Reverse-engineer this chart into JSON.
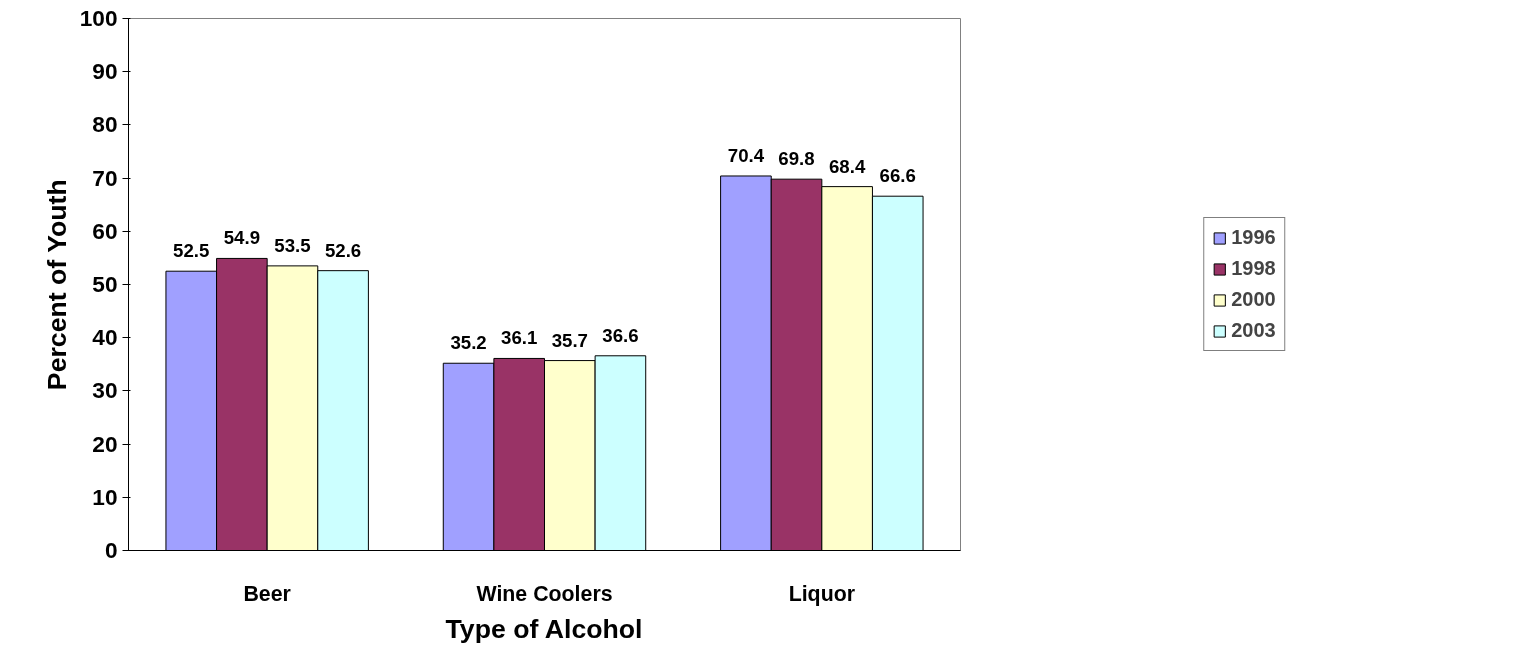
{
  "chart_data": {
    "type": "bar",
    "xlabel": "Type of Alcohol",
    "ylabel": "Percent of Youth",
    "categories": [
      "Beer",
      "Wine Coolers",
      "Liquor"
    ],
    "series": [
      {
        "name": "1996",
        "color": "#a0a0ff",
        "values": [
          52.5,
          35.2,
          70.4
        ]
      },
      {
        "name": "1998",
        "color": "#993366",
        "values": [
          54.9,
          36.1,
          69.8
        ]
      },
      {
        "name": "2000",
        "color": "#ffffcc",
        "values": [
          53.5,
          35.7,
          68.4
        ]
      },
      {
        "name": "2003",
        "color": "#ccffff",
        "values": [
          52.6,
          36.6,
          66.6
        ]
      }
    ],
    "ylim": [
      0,
      100
    ],
    "yticks": [
      0,
      10,
      20,
      30,
      40,
      50,
      60,
      70,
      80,
      90,
      100
    ],
    "legend": "right",
    "data_labels": true
  }
}
